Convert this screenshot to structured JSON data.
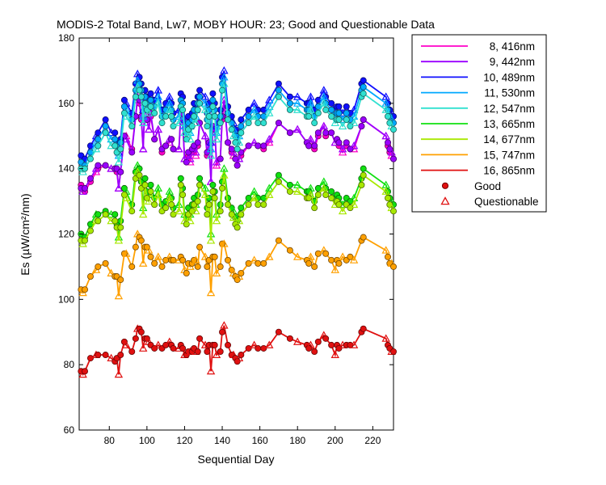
{
  "chart_data": {
    "type": "line",
    "title": "MODIS-2 Total Band,  Lw7, MOBY HOUR: 23;  Good and Questionable Data",
    "xlabel": "Sequential Day",
    "ylabel": "Es (µW/cm²/nm)",
    "xlim": [
      64,
      231
    ],
    "ylim": [
      60,
      180
    ],
    "xticks": [
      80,
      100,
      120,
      140,
      160,
      180,
      200,
      220
    ],
    "yticks": [
      60,
      80,
      100,
      120,
      140,
      160,
      180
    ],
    "legend_position": "outside-right",
    "marker_legend": [
      {
        "label": "Good",
        "marker": "circle"
      },
      {
        "label": "Questionable",
        "marker": "triangle"
      }
    ],
    "x": [
      65,
      66,
      67,
      70,
      73,
      74,
      78,
      81,
      83,
      84,
      85,
      86,
      88,
      89,
      92,
      94,
      95,
      96,
      97,
      98,
      99,
      100,
      101,
      102,
      104,
      106,
      108,
      110,
      112,
      113,
      114,
      117,
      118,
      119,
      120,
      121,
      122,
      123,
      124,
      125,
      126,
      127,
      128,
      131,
      132,
      133,
      134,
      135,
      136,
      137,
      139,
      140,
      141,
      143,
      145,
      146,
      147,
      148,
      149,
      150,
      154,
      157,
      159,
      162,
      165,
      170,
      176,
      180,
      185,
      186,
      187,
      189,
      191,
      194,
      195,
      198,
      200,
      201,
      202,
      204,
      206,
      208,
      210,
      214,
      215,
      227,
      228,
      229,
      230,
      231
    ],
    "series": [
      {
        "name": "8, 416nm",
        "color": "#ff00c8",
        "values": [
          135,
          134,
          133,
          136,
          139,
          140,
          141,
          140,
          140,
          139,
          134,
          139,
          150,
          150,
          146,
          156,
          161,
          160,
          155,
          146,
          161,
          155,
          152,
          156,
          149,
          152,
          145,
          147,
          148,
          149,
          146,
          146,
          157,
          154,
          143,
          142,
          144,
          142,
          145,
          146,
          144,
          147,
          154,
          150,
          144,
          148,
          136,
          152,
          152,
          141,
          143,
          155,
          160,
          148,
          145,
          144,
          143,
          141,
          143,
          144,
          147,
          148,
          147,
          146,
          148,
          154,
          151,
          152,
          148,
          147,
          149,
          146,
          150,
          153,
          150,
          151,
          148,
          149,
          147,
          145,
          147,
          146,
          146,
          153,
          155,
          150,
          147,
          145,
          144,
          143
        ]
      },
      {
        "name": "9, 442nm",
        "color": "#9b00ff",
        "values": [
          134,
          133,
          134,
          137,
          140,
          141,
          141,
          140,
          140,
          140,
          134,
          139,
          150,
          149,
          145,
          156,
          162,
          161,
          156,
          146,
          162,
          155,
          152,
          157,
          149,
          152,
          146,
          147,
          149,
          149,
          146,
          146,
          157,
          155,
          143,
          142,
          145,
          143,
          146,
          147,
          145,
          148,
          154,
          150,
          145,
          148,
          136,
          153,
          152,
          142,
          143,
          156,
          161,
          148,
          146,
          145,
          143,
          141,
          143,
          145,
          147,
          148,
          147,
          147,
          149,
          154,
          151,
          152,
          148,
          147,
          149,
          147,
          151,
          153,
          151,
          151,
          148,
          149,
          148,
          146,
          148,
          146,
          147,
          153,
          155,
          150,
          148,
          146,
          145,
          143
        ]
      },
      {
        "name": "10, 489nm",
        "color": "#1010ff",
        "values": [
          144,
          143,
          143,
          147,
          150,
          151,
          155,
          151,
          151,
          148,
          145,
          149,
          161,
          160,
          157,
          166,
          169,
          168,
          166,
          158,
          164,
          162,
          161,
          163,
          161,
          164,
          158,
          160,
          162,
          160,
          157,
          158,
          163,
          162,
          155,
          153,
          156,
          153,
          157,
          160,
          158,
          162,
          164,
          162,
          157,
          160,
          148,
          163,
          160,
          153,
          158,
          168,
          170,
          159,
          156,
          154,
          152,
          150,
          152,
          155,
          158,
          160,
          158,
          158,
          161,
          166,
          162,
          162,
          160,
          160,
          162,
          158,
          161,
          164,
          162,
          160,
          158,
          159,
          159,
          157,
          159,
          157,
          158,
          166,
          167,
          162,
          160,
          158,
          157,
          156
        ]
      },
      {
        "name": "11, 530nm",
        "color": "#00a8ff",
        "values": [
          142,
          141,
          141,
          145,
          148,
          149,
          153,
          149,
          149,
          147,
          144,
          148,
          159,
          158,
          155,
          164,
          167,
          166,
          164,
          156,
          162,
          160,
          159,
          161,
          159,
          162,
          156,
          158,
          160,
          158,
          155,
          156,
          161,
          160,
          153,
          151,
          154,
          151,
          155,
          158,
          156,
          160,
          162,
          160,
          155,
          158,
          146,
          161,
          158,
          151,
          156,
          166,
          168,
          157,
          154,
          152,
          150,
          148,
          150,
          153,
          156,
          158,
          156,
          156,
          159,
          164,
          160,
          160,
          158,
          158,
          160,
          156,
          159,
          162,
          160,
          158,
          156,
          157,
          157,
          155,
          157,
          155,
          156,
          164,
          165,
          160,
          158,
          156,
          155,
          154
        ]
      },
      {
        "name": "12, 547nm",
        "color": "#30e0d0",
        "values": [
          140,
          139,
          140,
          143,
          146,
          147,
          151,
          147,
          147,
          145,
          142,
          146,
          157,
          156,
          153,
          162,
          165,
          164,
          162,
          154,
          160,
          158,
          157,
          159,
          157,
          160,
          154,
          156,
          158,
          156,
          153,
          154,
          159,
          158,
          151,
          149,
          152,
          149,
          153,
          156,
          154,
          158,
          160,
          158,
          153,
          156,
          144,
          159,
          156,
          149,
          154,
          164,
          166,
          155,
          152,
          150,
          148,
          146,
          148,
          151,
          154,
          156,
          154,
          154,
          157,
          162,
          158,
          158,
          156,
          156,
          158,
          154,
          157,
          160,
          158,
          156,
          154,
          155,
          155,
          153,
          155,
          153,
          154,
          162,
          163,
          158,
          156,
          154,
          153,
          152
        ]
      },
      {
        "name": "13, 665nm",
        "color": "#10e010",
        "values": [
          120,
          119,
          119,
          123,
          126,
          126,
          127,
          126,
          126,
          123,
          119,
          124,
          134,
          133,
          129,
          139,
          141,
          140,
          136,
          128,
          137,
          133,
          132,
          135,
          131,
          134,
          129,
          130,
          133,
          131,
          128,
          129,
          137,
          134,
          126,
          125,
          128,
          126,
          129,
          131,
          129,
          132,
          137,
          134,
          128,
          131,
          120,
          135,
          133,
          126,
          129,
          136,
          140,
          131,
          128,
          127,
          125,
          124,
          126,
          128,
          131,
          133,
          131,
          131,
          134,
          138,
          135,
          135,
          133,
          133,
          134,
          130,
          134,
          136,
          134,
          133,
          131,
          132,
          131,
          129,
          131,
          130,
          131,
          137,
          140,
          135,
          133,
          131,
          130,
          129
        ]
      },
      {
        "name": "14, 677nm",
        "color": "#a8e800",
        "values": [
          118,
          117,
          118,
          121,
          124,
          124,
          126,
          124,
          124,
          122,
          118,
          122,
          132,
          131,
          127,
          137,
          139,
          138,
          134,
          126,
          135,
          131,
          130,
          133,
          129,
          132,
          127,
          128,
          131,
          129,
          126,
          127,
          135,
          132,
          124,
          123,
          126,
          124,
          127,
          129,
          127,
          130,
          135,
          132,
          126,
          129,
          118,
          133,
          131,
          124,
          127,
          134,
          138,
          129,
          126,
          125,
          123,
          122,
          124,
          126,
          129,
          131,
          129,
          129,
          132,
          136,
          133,
          133,
          131,
          131,
          132,
          128,
          132,
          134,
          132,
          131,
          129,
          130,
          129,
          127,
          129,
          128,
          129,
          135,
          138,
          133,
          131,
          129,
          128,
          127
        ]
      },
      {
        "name": "15, 747nm",
        "color": "#ffa000",
        "values": [
          103,
          102,
          103,
          107,
          109,
          110,
          111,
          108,
          107,
          107,
          101,
          106,
          114,
          114,
          110,
          116,
          120,
          119,
          118,
          111,
          116,
          116,
          115,
          113,
          111,
          113,
          110,
          112,
          113,
          112,
          112,
          112,
          113,
          112,
          109,
          108,
          111,
          110,
          111,
          112,
          112,
          110,
          116,
          113,
          110,
          112,
          102,
          113,
          113,
          108,
          110,
          117,
          117,
          112,
          109,
          108,
          107,
          106,
          107,
          108,
          111,
          112,
          111,
          111,
          113,
          118,
          115,
          113,
          112,
          111,
          113,
          110,
          114,
          115,
          114,
          112,
          109,
          112,
          111,
          113,
          112,
          113,
          112,
          118,
          119,
          115,
          113,
          111,
          111,
          110
        ]
      },
      {
        "name": "16, 865nm",
        "color": "#e01010",
        "values": [
          78,
          77,
          78,
          82,
          83,
          83,
          83,
          82,
          81,
          82,
          77,
          83,
          87,
          86,
          84,
          88,
          91,
          91,
          90,
          85,
          88,
          88,
          87,
          86,
          85,
          86,
          85,
          86,
          87,
          86,
          85,
          85,
          86,
          85,
          83,
          83,
          84,
          84,
          84,
          85,
          84,
          84,
          88,
          86,
          84,
          86,
          78,
          86,
          86,
          83,
          84,
          90,
          92,
          86,
          83,
          83,
          82,
          81,
          82,
          83,
          85,
          86,
          85,
          85,
          86,
          90,
          88,
          87,
          86,
          85,
          86,
          84,
          87,
          89,
          88,
          86,
          83,
          86,
          85,
          86,
          86,
          86,
          86,
          90,
          91,
          88,
          86,
          85,
          84,
          84
        ]
      }
    ]
  }
}
